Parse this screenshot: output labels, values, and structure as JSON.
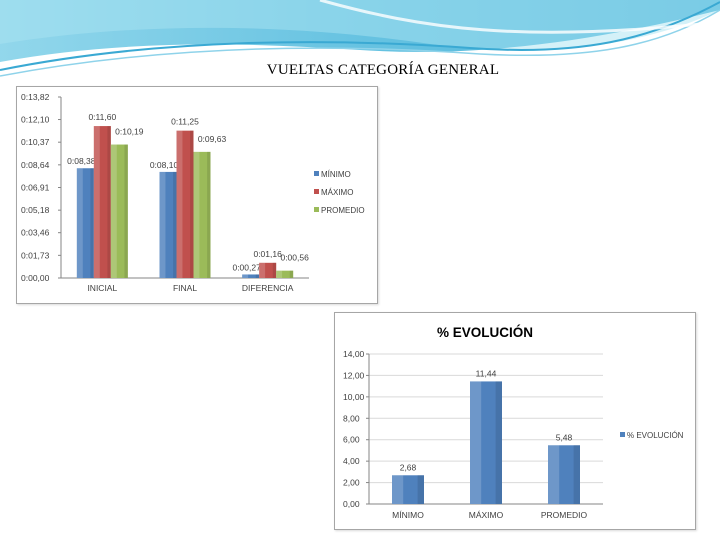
{
  "slide": {
    "title": "VUELTAS CATEGORÍA GENERAL"
  },
  "chart_data": [
    {
      "type": "bar",
      "title": "",
      "categories": [
        "INICIAL",
        "FINAL",
        "DIFERENCIA"
      ],
      "series": [
        {
          "name": "MÍNIMO",
          "color": "#4f81bd",
          "values": [
            "0:08,38",
            "0:08,10",
            "0:00,27"
          ]
        },
        {
          "name": "MÁXIMO",
          "color": "#c0504d",
          "values": [
            "0:11,60",
            "0:11,25",
            "0:01,16"
          ]
        },
        {
          "name": "PROMEDIO",
          "color": "#9bbb59",
          "values": [
            "0:10,19",
            "0:09,63",
            "0:00,56"
          ]
        }
      ],
      "yticks": [
        "0:00,00",
        "0:01,73",
        "0:03,46",
        "0:05,18",
        "0:06,91",
        "0:08,64",
        "0:10,37",
        "0:12,10",
        "0:13,82"
      ],
      "ylim": [
        "0:00,00",
        "0:13,82"
      ],
      "legend": "right",
      "grid": false
    },
    {
      "type": "bar",
      "title": "% EVOLUCIÓN",
      "categories": [
        "MÍNIMO",
        "MÁXIMO",
        "PROMEDIO"
      ],
      "series": [
        {
          "name": "% EVOLUCIÓN",
          "color": "#4f81bd",
          "values": [
            2.68,
            11.44,
            5.48
          ],
          "labels": [
            "2,68",
            "11,44",
            "5,48"
          ]
        }
      ],
      "yticks": [
        "0,00",
        "2,00",
        "4,00",
        "6,00",
        "8,00",
        "10,00",
        "12,00",
        "14,00"
      ],
      "ylim": [
        0,
        14
      ],
      "legend": "right",
      "grid": true
    }
  ]
}
